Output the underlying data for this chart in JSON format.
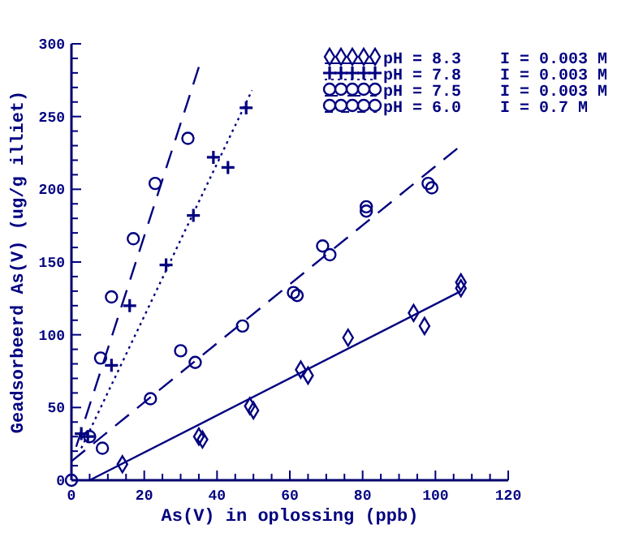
{
  "chart_data": {
    "type": "scatter",
    "xlabel": "As(V) in oplossing (ppb)",
    "ylabel": "Geadsorbeerd As(V) (ug/g illiet)",
    "xlim": [
      0,
      120
    ],
    "ylim": [
      0,
      300
    ],
    "xticks": [
      0,
      {
        "value": 5,
        "label": null
      },
      {
        "value": 10,
        "label": null
      },
      {
        "value": 15,
        "label": null
      },
      20,
      {
        "value": 25,
        "label": null
      },
      {
        "value": 30,
        "label": null
      },
      {
        "value": 35,
        "label": null
      },
      40,
      {
        "value": 45,
        "label": null
      },
      {
        "value": 50,
        "label": null
      },
      {
        "value": 55,
        "label": null
      },
      60,
      {
        "value": 65,
        "label": null
      },
      {
        "value": 70,
        "label": null
      },
      {
        "value": 75,
        "label": null
      },
      80,
      {
        "value": 85,
        "label": null
      },
      {
        "value": 90,
        "label": null
      },
      {
        "value": 95,
        "label": null
      },
      100,
      {
        "value": 105,
        "label": null
      },
      {
        "value": 110,
        "label": null
      },
      {
        "value": 115,
        "label": null
      },
      120
    ],
    "yticks": [
      0,
      {
        "value": 10,
        "label": null
      },
      {
        "value": 20,
        "label": null
      },
      {
        "value": 30,
        "label": null
      },
      {
        "value": 40,
        "label": null
      },
      50,
      {
        "value": 60,
        "label": null
      },
      {
        "value": 70,
        "label": null
      },
      {
        "value": 80,
        "label": null
      },
      {
        "value": 90,
        "label": null
      },
      100,
      {
        "value": 110,
        "label": null
      },
      {
        "value": 120,
        "label": null
      },
      {
        "value": 130,
        "label": null
      },
      {
        "value": 140,
        "label": null
      },
      150,
      {
        "value": 160,
        "label": null
      },
      {
        "value": 170,
        "label": null
      },
      {
        "value": 180,
        "label": null
      },
      {
        "value": 190,
        "label": null
      },
      200,
      {
        "value": 210,
        "label": null
      },
      {
        "value": 220,
        "label": null
      },
      {
        "value": 230,
        "label": null
      },
      {
        "value": 240,
        "label": null
      },
      250,
      {
        "value": 260,
        "label": null
      },
      {
        "value": 270,
        "label": null
      },
      {
        "value": 280,
        "label": null
      },
      {
        "value": 290,
        "label": null
      },
      300
    ],
    "grid": false,
    "legend": "top right",
    "series": [
      {
        "name": "pH = 8.3    I = 0.003 M",
        "color": "#000080",
        "marker": "diamond",
        "line_style": "solid",
        "x": [
          14,
          35,
          36,
          49,
          50,
          63,
          65,
          76,
          94,
          97,
          107,
          107
        ],
        "values": [
          11,
          30,
          28,
          51,
          48,
          76,
          72,
          98,
          115,
          106,
          136,
          132
        ]
      },
      {
        "name": "pH = 7.8    I = 0.003 M",
        "color": "#000080",
        "marker": "cross",
        "line_style": "dotted",
        "x": [
          2.7,
          4.5,
          11,
          16,
          26,
          33.5,
          39,
          43,
          48
        ],
        "values": [
          32,
          30,
          79,
          120,
          148,
          182,
          222,
          215,
          256
        ]
      },
      {
        "name": "pH = 7.5    I = 0.003 M",
        "color": "#000080",
        "marker": "circle",
        "line_style": "dashed",
        "x": [
          0,
          5,
          8,
          17,
          23,
          32
        ],
        "values": [
          0,
          30,
          84,
          166,
          204,
          235
        ]
      },
      {
        "name": "pH = 6.0    I = 0.7 M",
        "color": "#000080",
        "marker": "circle",
        "line_style": "dashed",
        "x": [
          8.5,
          11,
          21.7,
          30,
          34,
          47,
          61,
          62,
          69,
          71,
          81,
          81,
          98,
          99
        ],
        "values": [
          22,
          126,
          56,
          89,
          81,
          106,
          129,
          127,
          161,
          155,
          188,
          185,
          204,
          201
        ]
      },
      {
        "type": "line",
        "color": "#000080",
        "line_style": "solid",
        "x": [
          5,
          107
        ],
        "values": [
          0,
          130
        ]
      },
      {
        "type": "line",
        "color": "#000080",
        "line_style": "dotted",
        "x": [
          2.7,
          49.6
        ],
        "values": [
          22,
          268
        ]
      },
      {
        "type": "line",
        "color": "#000080",
        "line_style": "dashed",
        "x": [
          1.3,
          35
        ],
        "values": [
          23,
          284
        ]
      },
      {
        "type": "line",
        "color": "#000080",
        "line_style": "dashed",
        "x": [
          0,
          106
        ],
        "values": [
          13,
          228
        ]
      }
    ]
  }
}
